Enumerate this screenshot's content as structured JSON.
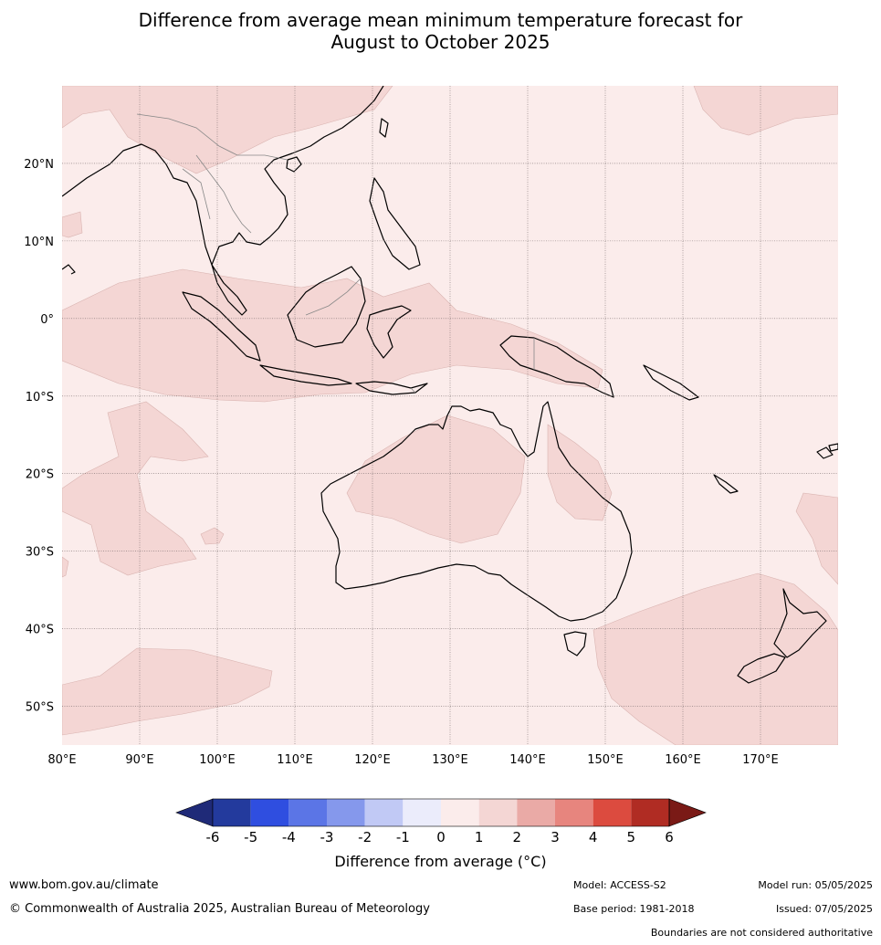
{
  "title": {
    "line1": "Difference from average mean minimum temperature forecast for",
    "line2": "August to October 2025"
  },
  "map": {
    "lon_range": [
      80,
      180
    ],
    "lat_range": [
      -55,
      30
    ],
    "lon_labels": [
      "80°E",
      "90°E",
      "100°E",
      "110°E",
      "120°E",
      "130°E",
      "140°E",
      "150°E",
      "160°E",
      "170°E"
    ],
    "lat_labels": [
      "20°N",
      "10°N",
      "0°",
      "10°S",
      "20°S",
      "30°S",
      "40°S",
      "50°S"
    ],
    "background_color": "#fbeceb",
    "anomaly_color": "#f4d6d4",
    "coast_color": "#000000",
    "border_color": "#888888",
    "grid": true
  },
  "colorbar": {
    "ticks": [
      "-6",
      "-5",
      "-4",
      "-3",
      "-2",
      "-1",
      "0",
      "1",
      "2",
      "3",
      "4",
      "5",
      "6"
    ],
    "colors": [
      "#233a9d",
      "#2f4ee0",
      "#5b75e6",
      "#8598ec",
      "#c1c9f5",
      "#ebecfb",
      "#fbeceb",
      "#f4d6d4",
      "#eaaaa6",
      "#e7857e",
      "#dc4b3f",
      "#b02c23"
    ],
    "under_color": "#1f2a78",
    "over_color": "#7a1a16",
    "label": "Difference from average (°C)"
  },
  "footer": {
    "url": "www.bom.gov.au/climate",
    "copyright": "© Commonwealth of Australia 2025, Australian Bureau of Meteorology",
    "model": "Model: ACCESS-S2",
    "base_period": "Base period: 1981-2018",
    "model_run": "Model run: 05/05/2025",
    "issued": "Issued: 07/05/2025",
    "disclaimer": "Boundaries are not considered authoritative"
  }
}
